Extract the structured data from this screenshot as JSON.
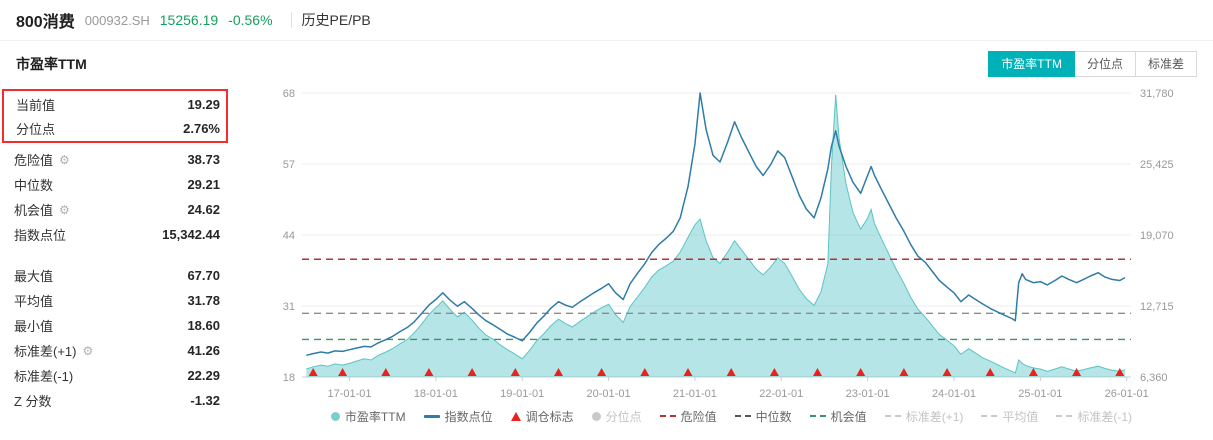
{
  "header": {
    "title": "800消费",
    "code": "000932.SH",
    "price": "15256.19",
    "change": "-0.56%",
    "nav": "历史PE/PB"
  },
  "section": {
    "title": "市盈率TTM"
  },
  "toolbar": {
    "buttons": [
      {
        "label": "市盈率TTM",
        "active": true
      },
      {
        "label": "分位点",
        "active": false
      },
      {
        "label": "标准差",
        "active": false
      }
    ]
  },
  "stats": {
    "highlighted": [
      {
        "label": "当前值",
        "value": "19.29"
      },
      {
        "label": "分位点",
        "value": "2.76%"
      }
    ],
    "rows_top": [
      {
        "label": "危险值",
        "gear": true,
        "value": "38.73"
      },
      {
        "label": "中位数",
        "gear": false,
        "value": "29.21"
      },
      {
        "label": "机会值",
        "gear": true,
        "value": "24.62"
      },
      {
        "label": "指数点位",
        "gear": false,
        "value": "15,342.44"
      }
    ],
    "rows_bottom": [
      {
        "label": "最大值",
        "gear": false,
        "value": "67.70"
      },
      {
        "label": "平均值",
        "gear": false,
        "value": "31.78"
      },
      {
        "label": "最小值",
        "gear": false,
        "value": "18.60"
      },
      {
        "label": "标准差(+1)",
        "gear": true,
        "value": "41.26"
      },
      {
        "label": "标准差(-1)",
        "gear": false,
        "value": "22.29"
      },
      {
        "label": "Z 分数",
        "gear": false,
        "value": "-1.32"
      }
    ]
  },
  "colors": {
    "accent_teal": "#00b2b8",
    "price_green": "#16a05e",
    "highlight_red": "#f52c2c"
  },
  "chart_data": {
    "type": "line",
    "title": "市盈率TTM与指数点位历史走势",
    "x_range": [
      2016.45,
      2026.05
    ],
    "x": [
      2016.5,
      2016.58,
      2016.67,
      2016.75,
      2016.83,
      2016.92,
      2017.0,
      2017.08,
      2017.17,
      2017.25,
      2017.33,
      2017.42,
      2017.5,
      2017.58,
      2017.67,
      2017.75,
      2017.83,
      2017.92,
      2018.0,
      2018.08,
      2018.17,
      2018.25,
      2018.33,
      2018.42,
      2018.5,
      2018.58,
      2018.67,
      2018.75,
      2018.83,
      2018.92,
      2019.0,
      2019.08,
      2019.17,
      2019.25,
      2019.33,
      2019.42,
      2019.5,
      2019.58,
      2019.67,
      2019.75,
      2019.83,
      2019.92,
      2020.0,
      2020.08,
      2020.17,
      2020.25,
      2020.33,
      2020.42,
      2020.5,
      2020.58,
      2020.67,
      2020.75,
      2020.83,
      2020.92,
      2021.0,
      2021.06,
      2021.13,
      2021.21,
      2021.29,
      2021.38,
      2021.46,
      2021.54,
      2021.63,
      2021.71,
      2021.79,
      2021.88,
      2021.96,
      2022.04,
      2022.13,
      2022.21,
      2022.29,
      2022.38,
      2022.46,
      2022.54,
      2022.58,
      2022.63,
      2022.67,
      2022.75,
      2022.83,
      2022.92,
      2023.0,
      2023.04,
      2023.08,
      2023.17,
      2023.25,
      2023.33,
      2023.42,
      2023.5,
      2023.58,
      2023.67,
      2023.75,
      2023.83,
      2023.92,
      2024.0,
      2024.08,
      2024.17,
      2024.25,
      2024.33,
      2024.42,
      2024.5,
      2024.58,
      2024.67,
      2024.71,
      2024.75,
      2024.79,
      2024.83,
      2024.92,
      2025.0,
      2025.08,
      2025.17,
      2025.25,
      2025.33,
      2025.42,
      2025.5,
      2025.58,
      2025.67,
      2025.75,
      2025.83,
      2025.92,
      2025.98
    ],
    "series": [
      {
        "name": "市盈率TTM",
        "axis": "left",
        "type": "area",
        "fill": "rgba(92,198,200,0.45)",
        "stroke": "#5bc4c6",
        "values": [
          19.4,
          19.8,
          20.1,
          19.9,
          20.3,
          20.1,
          20.4,
          20.8,
          21.2,
          21.0,
          21.8,
          22.4,
          23.0,
          23.8,
          24.6,
          25.8,
          27.2,
          29.0,
          30.2,
          31.4,
          29.8,
          28.6,
          29.4,
          28.0,
          26.6,
          25.4,
          24.6,
          23.6,
          22.8,
          22.0,
          21.2,
          22.6,
          24.4,
          25.6,
          27.0,
          28.2,
          27.4,
          26.8,
          27.8,
          28.6,
          29.4,
          30.2,
          30.8,
          29.0,
          27.6,
          30.4,
          32.0,
          33.8,
          35.6,
          36.8,
          37.6,
          38.4,
          40.0,
          42.6,
          44.8,
          45.8,
          42.0,
          39.0,
          38.0,
          40.0,
          42.0,
          40.4,
          38.6,
          37.0,
          36.0,
          37.4,
          39.0,
          38.0,
          35.6,
          33.4,
          31.8,
          30.6,
          33.0,
          38.0,
          55.0,
          67.7,
          60.0,
          52.0,
          47.0,
          44.0,
          46.0,
          47.5,
          45.0,
          42.0,
          39.5,
          37.0,
          34.5,
          32.0,
          30.0,
          28.5,
          27.0,
          25.5,
          24.5,
          23.5,
          22.0,
          23.0,
          22.2,
          21.4,
          20.8,
          20.2,
          19.6,
          19.0,
          18.7,
          21.0,
          20.4,
          20.0,
          19.6,
          19.4,
          19.0,
          19.4,
          19.8,
          19.4,
          19.0,
          19.3,
          19.6,
          19.9,
          19.5,
          19.2,
          19.0,
          19.29
        ]
      },
      {
        "name": "指数点位",
        "axis": "right",
        "type": "line",
        "color": "#2e7ca8",
        "values": [
          8300,
          8450,
          8600,
          8500,
          8700,
          8650,
          8800,
          8950,
          9100,
          9050,
          9400,
          9700,
          10000,
          10400,
          10800,
          11300,
          12000,
          12800,
          13300,
          13900,
          13200,
          12700,
          13100,
          12500,
          11900,
          11400,
          11000,
          10600,
          10200,
          9900,
          9600,
          10300,
          11200,
          11800,
          12500,
          13100,
          12800,
          12600,
          13100,
          13500,
          13900,
          14300,
          14700,
          13900,
          13300,
          14700,
          15600,
          16500,
          17500,
          18200,
          18800,
          19400,
          20600,
          23400,
          27200,
          31780,
          28500,
          26200,
          25600,
          27400,
          29200,
          27800,
          26400,
          25200,
          24400,
          25400,
          26600,
          26000,
          24200,
          22600,
          21400,
          20600,
          22400,
          25000,
          27000,
          28400,
          27000,
          25200,
          23800,
          22800,
          24400,
          25200,
          24400,
          23000,
          21800,
          20600,
          19400,
          18200,
          17200,
          16600,
          15800,
          15000,
          14400,
          13900,
          13100,
          13700,
          13300,
          12900,
          12500,
          12200,
          11900,
          11600,
          11400,
          14800,
          15600,
          15100,
          14800,
          14900,
          14600,
          15000,
          15400,
          15100,
          14800,
          15100,
          15400,
          15700,
          15300,
          15100,
          15000,
          15256
        ]
      }
    ],
    "y_left": {
      "min": 18,
      "max": 68,
      "ticks": [
        "18",
        "31",
        "44",
        "57",
        "68"
      ]
    },
    "y_right": {
      "min": 6360,
      "max": 31780,
      "ticks": [
        "6,360",
        "12,715",
        "19,070",
        "25,425",
        "31,780"
      ]
    },
    "x_ticks": [
      {
        "x": 2017,
        "label": "17-01-01"
      },
      {
        "x": 2018,
        "label": "18-01-01"
      },
      {
        "x": 2019,
        "label": "19-01-01"
      },
      {
        "x": 2020,
        "label": "20-01-01"
      },
      {
        "x": 2021,
        "label": "21-01-01"
      },
      {
        "x": 2022,
        "label": "22-01-01"
      },
      {
        "x": 2023,
        "label": "23-01-01"
      },
      {
        "x": 2024,
        "label": "24-01-01"
      },
      {
        "x": 2025,
        "label": "25-01-01"
      },
      {
        "x": 2026,
        "label": "26-01-01"
      }
    ],
    "ref_lines": [
      {
        "name": "危险值",
        "value": 38.73,
        "color": "#b23530"
      },
      {
        "name": "中位数",
        "value": 29.21,
        "color": "#8c8c8c"
      },
      {
        "name": "机会值",
        "value": 24.62,
        "color": "#3d9468"
      }
    ],
    "markers": {
      "name": "调仓标志",
      "color": "#e8231d",
      "x": [
        2016.58,
        2016.92,
        2017.42,
        2017.92,
        2018.42,
        2018.92,
        2019.42,
        2019.92,
        2020.42,
        2020.92,
        2021.42,
        2021.92,
        2022.42,
        2022.92,
        2023.42,
        2023.92,
        2024.42,
        2024.92,
        2025.42,
        2025.92
      ]
    },
    "legend_position": "bottom",
    "grid": true
  },
  "legend": {
    "items": [
      {
        "label": "市盈率TTM",
        "mark": "circle",
        "color": "#79cfcd",
        "disabled": false
      },
      {
        "label": "指数点位",
        "mark": "line",
        "color": "#2e7ca8",
        "disabled": false
      },
      {
        "label": "调仓标志",
        "mark": "triangle",
        "color": "#e8231d",
        "disabled": false
      },
      {
        "label": "分位点",
        "mark": "circle",
        "color": "#c9c9c9",
        "disabled": true
      },
      {
        "label": "危险值",
        "mark": "dash",
        "color": "#b23530",
        "disabled": false
      },
      {
        "label": "中位数",
        "mark": "dash",
        "color": "#555555",
        "disabled": false
      },
      {
        "label": "机会值",
        "mark": "dash",
        "color": "#3d9468",
        "disabled": false
      },
      {
        "label": "标准差(+1)",
        "mark": "dash",
        "color": "#c9c9c9",
        "disabled": true
      },
      {
        "label": "平均值",
        "mark": "dash",
        "color": "#c9c9c9",
        "disabled": true
      },
      {
        "label": "标准差(-1)",
        "mark": "dash",
        "color": "#c9c9c9",
        "disabled": true
      }
    ]
  }
}
